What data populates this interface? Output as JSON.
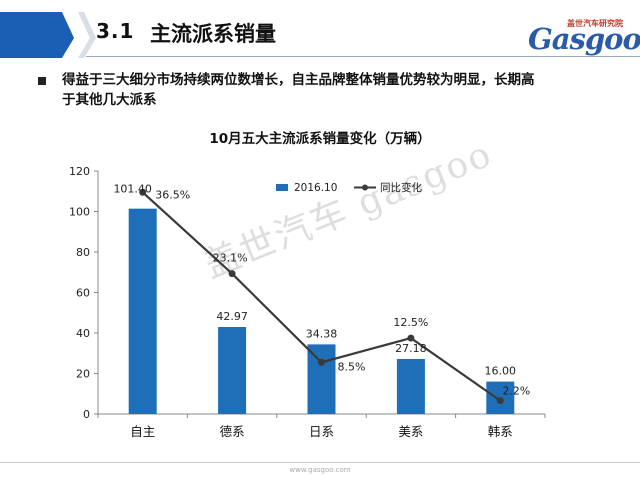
{
  "header": {
    "section_number": "3.1",
    "section_title": "主流派系销量",
    "logo_top": "盖世汽车研究院",
    "logo_main": "Gasgoo",
    "accent": "#1a5fb4"
  },
  "bullet": {
    "line1": "得益于三大细分市场持续两位数增长，自主品牌整体销量优势较为明显，长期高",
    "line2": "于其他几大派系"
  },
  "chart_data": {
    "type": "bar",
    "title": "10月五大主流派系销量变化（万辆）",
    "categories": [
      "自主",
      "德系",
      "日系",
      "美系",
      "韩系"
    ],
    "series": [
      {
        "name": "2016.10",
        "type": "bar",
        "color": "#1f6fb8",
        "values": [
          101.4,
          42.97,
          34.38,
          27.18,
          16.0
        ],
        "labels": [
          "101.40",
          "42.97",
          "34.38",
          "27.18",
          "16.00"
        ]
      },
      {
        "name": "同比变化",
        "type": "line",
        "color": "#3a3a3a",
        "values": [
          36.5,
          23.1,
          8.5,
          12.5,
          2.2
        ],
        "labels": [
          "36.5%",
          "23.1%",
          "8.5%",
          "12.5%",
          "2.2%"
        ]
      }
    ],
    "ylim": [
      0,
      120
    ],
    "yticks": [
      0,
      20,
      40,
      60,
      80,
      100,
      120
    ],
    "secondary_ylim": [
      0,
      40
    ],
    "grid": false,
    "legend": "top-center"
  },
  "watermark": "盖世汽车 gasgoo",
  "footer": "www.gasgoo.com"
}
